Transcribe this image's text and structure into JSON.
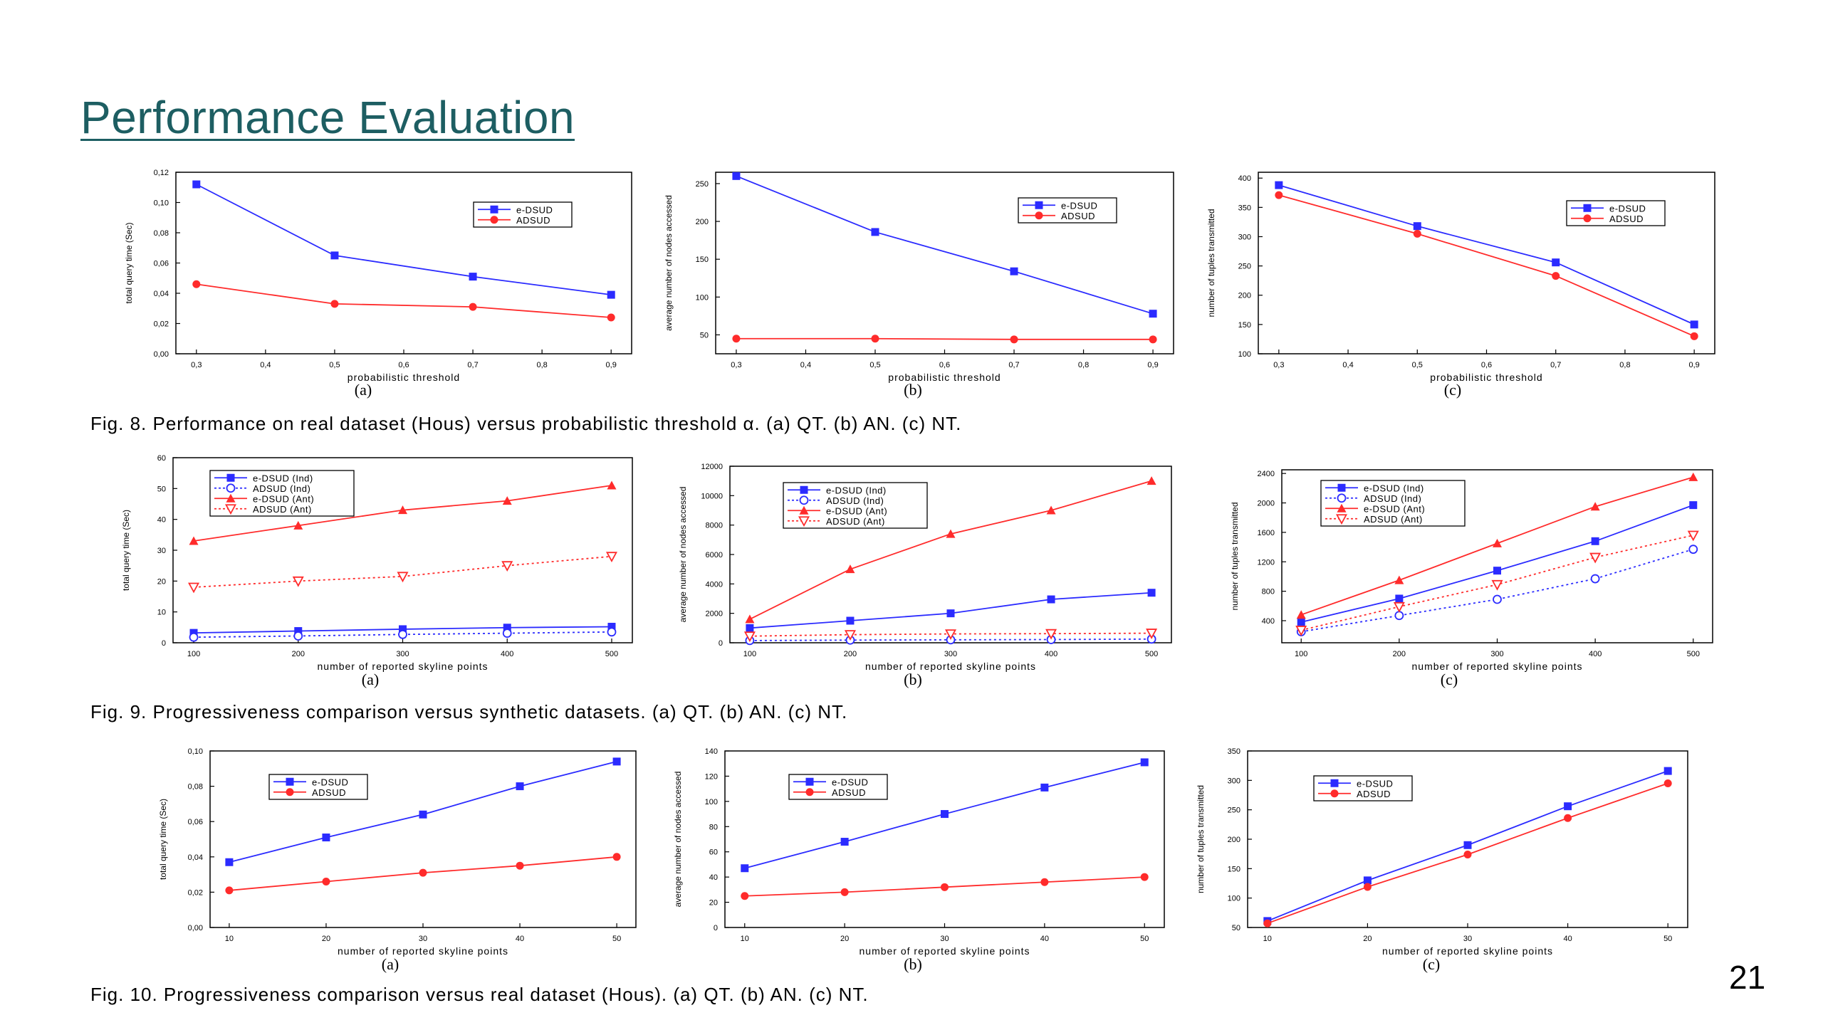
{
  "title": "Performance Evaluation",
  "page_number": "21",
  "captions": {
    "fig8": "Fig. 8. Performance on real dataset (Hous) versus probabilistic threshold α. (a) QT. (b) AN. (c) NT.",
    "fig9": "Fig. 9. Progressiveness comparison versus synthetic datasets. (a) QT. (b) AN. (c) NT.",
    "fig10": "Fig. 10. Progressiveness comparison versus real dataset (Hous). (a) QT. (b) AN. (c) NT."
  },
  "colors": {
    "blue": "#2b2bff",
    "red": "#ff2b2b",
    "title": "#1d5e62"
  },
  "chart_data": [
    {
      "id": "f8a",
      "type": "line",
      "sublabel": "(a)",
      "xlabel": "probabilistic threshold",
      "ylabel": "total query time (Sec)",
      "xlim": [
        0.3,
        0.9
      ],
      "ylim": [
        0,
        0.12
      ],
      "xticks": [
        "0,3",
        "0,4",
        "0,5",
        "0,6",
        "0,7",
        "0,8",
        "0,9"
      ],
      "yticks": [
        "0,00",
        "0,02",
        "0,04",
        "0,06",
        "0,08",
        "0,10",
        "0,12"
      ],
      "x": [
        0.3,
        0.5,
        0.7,
        0.9
      ],
      "legend": "top-right",
      "series": [
        {
          "name": "e-DSUD",
          "values": [
            0.112,
            0.065,
            0.051,
            0.039
          ],
          "color": "#2b2bff",
          "marker": "square",
          "dash": false
        },
        {
          "name": "ADSUD",
          "values": [
            0.046,
            0.033,
            0.031,
            0.024
          ],
          "color": "#ff2b2b",
          "marker": "circle",
          "dash": false
        }
      ]
    },
    {
      "id": "f8b",
      "type": "line",
      "sublabel": "(b)",
      "xlabel": "probabilistic threshold",
      "ylabel": "average number of nodes accessed",
      "xlim": [
        0.3,
        0.9
      ],
      "ylim": [
        25,
        265
      ],
      "xticks": [
        "0,3",
        "0,4",
        "0,5",
        "0,6",
        "0,7",
        "0,8",
        "0,9"
      ],
      "yticks": [
        "50",
        "100",
        "150",
        "200",
        "250"
      ],
      "x": [
        0.3,
        0.5,
        0.7,
        0.9
      ],
      "legend": "top-right",
      "series": [
        {
          "name": "e-DSUD",
          "values": [
            260,
            186,
            134,
            78
          ],
          "color": "#2b2bff",
          "marker": "square",
          "dash": false
        },
        {
          "name": "ADSUD",
          "values": [
            45,
            45,
            44,
            44
          ],
          "color": "#ff2b2b",
          "marker": "circle",
          "dash": false
        }
      ]
    },
    {
      "id": "f8c",
      "type": "line",
      "sublabel": "(c)",
      "xlabel": "probabilistic threshold",
      "ylabel": "number of tuples transmitted",
      "xlim": [
        0.3,
        0.9
      ],
      "ylim": [
        100,
        410
      ],
      "xticks": [
        "0,3",
        "0,4",
        "0,5",
        "0,6",
        "0,7",
        "0,8",
        "0,9"
      ],
      "yticks": [
        "100",
        "150",
        "200",
        "250",
        "300",
        "350",
        "400"
      ],
      "x": [
        0.3,
        0.5,
        0.7,
        0.9
      ],
      "legend": "top-right",
      "series": [
        {
          "name": "e-DSUD",
          "values": [
            388,
            318,
            256,
            150
          ],
          "color": "#2b2bff",
          "marker": "square",
          "dash": false
        },
        {
          "name": "ADSUD",
          "values": [
            371,
            305,
            233,
            130
          ],
          "color": "#ff2b2b",
          "marker": "circle",
          "dash": false
        }
      ]
    },
    {
      "id": "f9a",
      "type": "line",
      "sublabel": "(a)",
      "xlabel": "number of reported skyline points",
      "ylabel": "total query time (Sec)",
      "xlim": [
        100,
        500
      ],
      "ylim": [
        0,
        60
      ],
      "xticks": [
        "100",
        "200",
        "300",
        "400",
        "500"
      ],
      "yticks": [
        "0",
        "10",
        "20",
        "30",
        "40",
        "50",
        "60"
      ],
      "x": [
        100,
        200,
        300,
        400,
        500
      ],
      "legend": "top-left",
      "series": [
        {
          "name": "e-DSUD (Ind)",
          "values": [
            3.2,
            3.8,
            4.4,
            4.9,
            5.2
          ],
          "color": "#2b2bff",
          "marker": "square",
          "dash": false
        },
        {
          "name": "ADSUD (Ind)",
          "values": [
            1.8,
            2.2,
            2.7,
            3.1,
            3.5
          ],
          "color": "#2b2bff",
          "marker": "circle-open",
          "dash": true
        },
        {
          "name": "e-DSUD (Ant)",
          "values": [
            33,
            38,
            43,
            46,
            51
          ],
          "color": "#ff2b2b",
          "marker": "triangle",
          "dash": false
        },
        {
          "name": "ADSUD (Ant)",
          "values": [
            18,
            20,
            21.5,
            25,
            28
          ],
          "color": "#ff2b2b",
          "marker": "triangle-down-open",
          "dash": true
        }
      ]
    },
    {
      "id": "f9b",
      "type": "line",
      "sublabel": "(b)",
      "xlabel": "number of reported skyline points",
      "ylabel": "average number of nodes accessed",
      "xlim": [
        100,
        500
      ],
      "ylim": [
        0,
        12000
      ],
      "xticks": [
        "100",
        "200",
        "300",
        "400",
        "500"
      ],
      "yticks": [
        "0",
        "2000",
        "4000",
        "6000",
        "8000",
        "10000",
        "12000"
      ],
      "x": [
        100,
        200,
        300,
        400,
        500
      ],
      "legend": "top-left",
      "series": [
        {
          "name": "e-DSUD (Ind)",
          "values": [
            1000,
            1500,
            2000,
            2950,
            3400
          ],
          "color": "#2b2bff",
          "marker": "square",
          "dash": false
        },
        {
          "name": "ADSUD (Ind)",
          "values": [
            150,
            180,
            200,
            220,
            250
          ],
          "color": "#2b2bff",
          "marker": "circle-open",
          "dash": true
        },
        {
          "name": "e-DSUD (Ant)",
          "values": [
            1600,
            5000,
            7400,
            9000,
            11000
          ],
          "color": "#ff2b2b",
          "marker": "triangle",
          "dash": false
        },
        {
          "name": "ADSUD (Ant)",
          "values": [
            450,
            550,
            600,
            620,
            650
          ],
          "color": "#ff2b2b",
          "marker": "triangle-down-open",
          "dash": true
        }
      ]
    },
    {
      "id": "f9c",
      "type": "line",
      "sublabel": "(c)",
      "xlabel": "number of reported skyline points",
      "ylabel": "number of tuples transmitted",
      "xlim": [
        100,
        500
      ],
      "ylim": [
        100,
        2450
      ],
      "xticks": [
        "100",
        "200",
        "300",
        "400",
        "500"
      ],
      "yticks": [
        "400",
        "800",
        "1200",
        "1600",
        "2000",
        "2400"
      ],
      "x": [
        100,
        200,
        300,
        400,
        500
      ],
      "legend": "top-left",
      "series": [
        {
          "name": "e-DSUD (Ind)",
          "values": [
            380,
            700,
            1080,
            1480,
            1970
          ],
          "color": "#2b2bff",
          "marker": "square",
          "dash": false
        },
        {
          "name": "ADSUD (Ind)",
          "values": [
            250,
            470,
            690,
            970,
            1370
          ],
          "color": "#2b2bff",
          "marker": "circle-open",
          "dash": true
        },
        {
          "name": "e-DSUD (Ant)",
          "values": [
            480,
            950,
            1450,
            1950,
            2350
          ],
          "color": "#ff2b2b",
          "marker": "triangle",
          "dash": false
        },
        {
          "name": "ADSUD (Ant)",
          "values": [
            270,
            590,
            890,
            1260,
            1560
          ],
          "color": "#ff2b2b",
          "marker": "triangle-down-open",
          "dash": true
        }
      ]
    },
    {
      "id": "f10a",
      "type": "line",
      "sublabel": "(a)",
      "xlabel": "number of reported skyline points",
      "ylabel": "total query time (Sec)",
      "xlim": [
        10,
        50
      ],
      "ylim": [
        0,
        0.1
      ],
      "xticks": [
        "10",
        "20",
        "30",
        "40",
        "50"
      ],
      "yticks": [
        "0,00",
        "0,02",
        "0,04",
        "0,06",
        "0,08",
        "0,10"
      ],
      "x": [
        10,
        20,
        30,
        40,
        50
      ],
      "legend": "top-left",
      "series": [
        {
          "name": "e-DSUD",
          "values": [
            0.037,
            0.051,
            0.064,
            0.08,
            0.094
          ],
          "color": "#2b2bff",
          "marker": "square",
          "dash": false
        },
        {
          "name": "ADSUD",
          "values": [
            0.021,
            0.026,
            0.031,
            0.035,
            0.04
          ],
          "color": "#ff2b2b",
          "marker": "circle",
          "dash": false
        }
      ]
    },
    {
      "id": "f10b",
      "type": "line",
      "sublabel": "(b)",
      "xlabel": "number of reported skyline points",
      "ylabel": "average number of nodes accessed",
      "xlim": [
        10,
        50
      ],
      "ylim": [
        0,
        140
      ],
      "xticks": [
        "10",
        "20",
        "30",
        "40",
        "50"
      ],
      "yticks": [
        "0",
        "20",
        "40",
        "60",
        "80",
        "100",
        "120",
        "140"
      ],
      "x": [
        10,
        20,
        30,
        40,
        50
      ],
      "legend": "top-left",
      "series": [
        {
          "name": "e-DSUD",
          "values": [
            47,
            68,
            90,
            111,
            131
          ],
          "color": "#2b2bff",
          "marker": "square",
          "dash": false
        },
        {
          "name": "ADSUD",
          "values": [
            25,
            28,
            32,
            36,
            40
          ],
          "color": "#ff2b2b",
          "marker": "circle",
          "dash": false
        }
      ]
    },
    {
      "id": "f10c",
      "type": "line",
      "sublabel": "(c)",
      "xlabel": "number of reported skyline points",
      "ylabel": "number of tuples transmitted",
      "xlim": [
        10,
        50
      ],
      "ylim": [
        50,
        350
      ],
      "xticks": [
        "10",
        "20",
        "30",
        "40",
        "50"
      ],
      "yticks": [
        "50",
        "100",
        "150",
        "200",
        "250",
        "300",
        "350"
      ],
      "x": [
        10,
        20,
        30,
        40,
        50
      ],
      "legend": "top-left",
      "series": [
        {
          "name": "e-DSUD",
          "values": [
            61,
            130,
            190,
            256,
            316
          ],
          "color": "#2b2bff",
          "marker": "square",
          "dash": false
        },
        {
          "name": "ADSUD",
          "values": [
            57,
            119,
            174,
            236,
            295
          ],
          "color": "#ff2b2b",
          "marker": "circle",
          "dash": false
        }
      ]
    }
  ]
}
